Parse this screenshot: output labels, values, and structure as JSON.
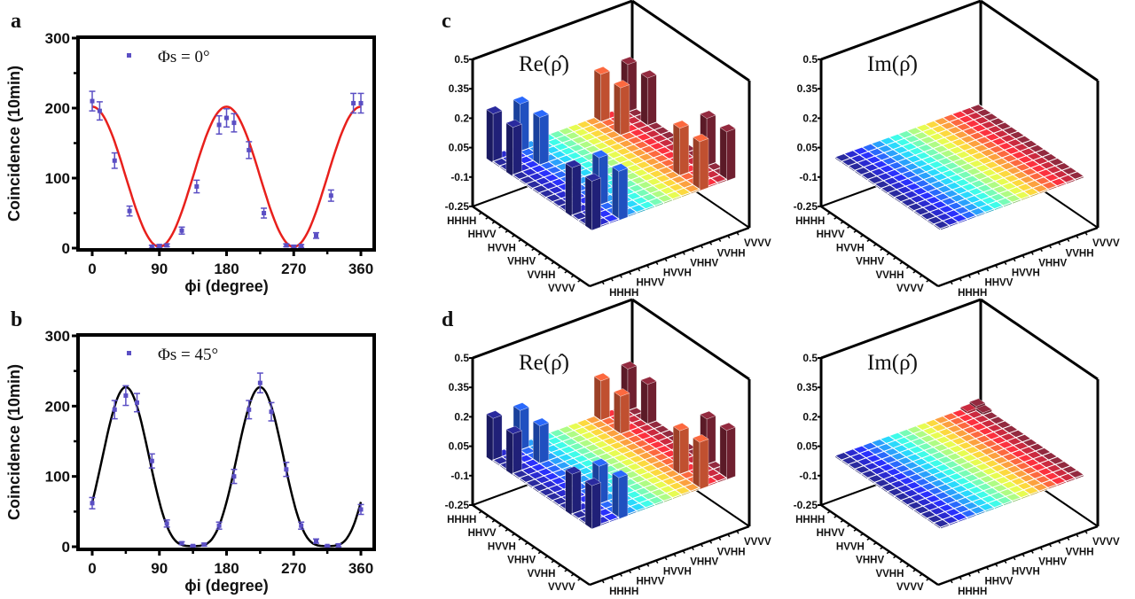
{
  "panel_letters": {
    "a": "a",
    "b": "b",
    "c": "c",
    "d": "d"
  },
  "chart_data": [
    {
      "id": "a",
      "type": "scatter",
      "xlabel": "ϕi (degree)",
      "ylabel": "Coincidence (10min)",
      "xlim": [
        0,
        360
      ],
      "ylim": [
        0,
        300
      ],
      "xticks": [
        "0",
        "90",
        "180",
        "270",
        "360"
      ],
      "yticks": [
        "0",
        "100",
        "200",
        "300"
      ],
      "legend": "Φs = 0°",
      "legend_position": "top-left",
      "marker_color": "#5b4fc4",
      "fit_color": "#e8201c",
      "x": [
        0,
        10,
        30,
        50,
        80,
        90,
        100,
        120,
        140,
        170,
        180,
        190,
        210,
        230,
        260,
        270,
        280,
        300,
        320,
        350,
        360
      ],
      "y": [
        210,
        196,
        125,
        53,
        2,
        3,
        4,
        25,
        88,
        176,
        186,
        179,
        140,
        50,
        4,
        2,
        3,
        18,
        75,
        207,
        207
      ],
      "errors": [
        14,
        13,
        11,
        7,
        2,
        2,
        2,
        5,
        9,
        13,
        13,
        13,
        12,
        7,
        2,
        2,
        2,
        4,
        8,
        14,
        14
      ]
    },
    {
      "id": "b",
      "type": "scatter",
      "xlabel": "ϕi (degree)",
      "ylabel": "Coincidence (10min)",
      "xlim": [
        0,
        360
      ],
      "ylim": [
        0,
        300
      ],
      "xticks": [
        "0",
        "90",
        "180",
        "270",
        "360"
      ],
      "yticks": [
        "0",
        "100",
        "200",
        "300"
      ],
      "legend": "Φs = 45°",
      "legend_position": "top-left",
      "marker_color": "#5b4fc4",
      "fit_color": "#000000",
      "x": [
        0,
        30,
        45,
        60,
        80,
        100,
        120,
        135,
        150,
        170,
        190,
        210,
        225,
        240,
        260,
        280,
        300,
        315,
        330,
        360
      ],
      "y": [
        62,
        195,
        215,
        205,
        122,
        33,
        5,
        1,
        3,
        30,
        100,
        195,
        233,
        192,
        110,
        30,
        8,
        1,
        2,
        53
      ],
      "errors": [
        8,
        13,
        14,
        13,
        10,
        5,
        2,
        1,
        2,
        5,
        10,
        13,
        14,
        13,
        10,
        5,
        3,
        1,
        2,
        7
      ]
    },
    {
      "id": "c-re",
      "type": "bar",
      "title": "Re(ρ̂)",
      "zlim": [
        -0.25,
        0.5
      ],
      "zticks": [
        "0.5",
        "0.35",
        "0.2",
        "0.05",
        "-0.1",
        "-0.25"
      ],
      "dimension": 16,
      "basis_ticks": [
        {
          "index": 0,
          "label": "HHHH"
        },
        {
          "index": 3,
          "label": "HHVV"
        },
        {
          "index": 6,
          "label": "HVVH"
        },
        {
          "index": 9,
          "label": "VHHV"
        },
        {
          "index": 12,
          "label": "VVHH"
        },
        {
          "index": 15,
          "label": "VVVV"
        }
      ],
      "elements": [
        [
          0,
          0,
          0.25
        ],
        [
          0,
          3,
          0.25
        ],
        [
          3,
          0,
          0.25
        ],
        [
          3,
          3,
          0.25
        ],
        [
          0,
          12,
          0.25
        ],
        [
          0,
          15,
          0.25
        ],
        [
          3,
          12,
          0.25
        ],
        [
          3,
          15,
          0.25
        ],
        [
          12,
          0,
          0.25
        ],
        [
          12,
          3,
          0.25
        ],
        [
          15,
          0,
          0.25
        ],
        [
          15,
          3,
          0.25
        ],
        [
          12,
          12,
          0.25
        ],
        [
          12,
          15,
          0.25
        ],
        [
          15,
          12,
          0.25
        ],
        [
          15,
          15,
          0.25
        ]
      ]
    },
    {
      "id": "c-im",
      "type": "bar",
      "title": "Im(ρ̂)",
      "zlim": [
        -0.25,
        0.5
      ],
      "zticks": [
        "0.5",
        "0.35",
        "0.2",
        "0.05",
        "-0.1",
        "-0.25"
      ],
      "dimension": 16,
      "basis_ticks": [
        {
          "index": 0,
          "label": "HHHH"
        },
        {
          "index": 3,
          "label": "HHVV"
        },
        {
          "index": 6,
          "label": "HVVH"
        },
        {
          "index": 9,
          "label": "VHHV"
        },
        {
          "index": 12,
          "label": "VVHH"
        },
        {
          "index": 15,
          "label": "VVVV"
        }
      ],
      "elements": []
    },
    {
      "id": "d-re",
      "type": "bar",
      "title": "Re(ρ̂)",
      "zlim": [
        -0.25,
        0.5
      ],
      "zticks": [
        "0.5",
        "0.35",
        "0.2",
        "0.05",
        "-0.1",
        "-0.25"
      ],
      "dimension": 16,
      "basis_ticks": [
        {
          "index": 0,
          "label": "HHHH"
        },
        {
          "index": 3,
          "label": "HHVV"
        },
        {
          "index": 6,
          "label": "HVVH"
        },
        {
          "index": 9,
          "label": "VHHV"
        },
        {
          "index": 12,
          "label": "VVHH"
        },
        {
          "index": 15,
          "label": "VVVV"
        }
      ],
      "elements": [
        [
          0,
          0,
          0.22
        ],
        [
          0,
          3,
          0.21
        ],
        [
          3,
          0,
          0.21
        ],
        [
          3,
          3,
          0.2
        ],
        [
          0,
          12,
          0.21
        ],
        [
          0,
          15,
          0.22
        ],
        [
          3,
          12,
          0.2
        ],
        [
          3,
          15,
          0.21
        ],
        [
          12,
          0,
          0.21
        ],
        [
          12,
          3,
          0.2
        ],
        [
          15,
          0,
          0.22
        ],
        [
          15,
          3,
          0.21
        ],
        [
          12,
          12,
          0.23
        ],
        [
          12,
          15,
          0.24
        ],
        [
          15,
          12,
          0.24
        ],
        [
          15,
          15,
          0.25
        ]
      ]
    },
    {
      "id": "d-im",
      "type": "bar",
      "title": "Im(ρ̂)",
      "zlim": [
        -0.25,
        0.5
      ],
      "zticks": [
        "0.5",
        "0.35",
        "0.2",
        "0.05",
        "-0.1",
        "-0.25"
      ],
      "dimension": 16,
      "basis_ticks": [
        {
          "index": 0,
          "label": "HHHH"
        },
        {
          "index": 3,
          "label": "HHVV"
        },
        {
          "index": 6,
          "label": "HVVH"
        },
        {
          "index": 9,
          "label": "VHHV"
        },
        {
          "index": 12,
          "label": "VVHH"
        },
        {
          "index": 15,
          "label": "VVVV"
        }
      ],
      "elements": [
        [
          0,
          15,
          0.03
        ],
        [
          1,
          15,
          0.02
        ],
        [
          0,
          14,
          0.02
        ]
      ]
    }
  ]
}
